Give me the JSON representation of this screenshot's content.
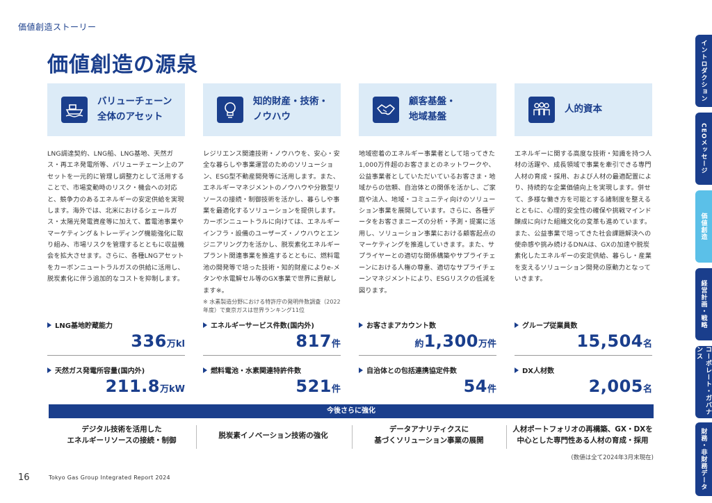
{
  "breadcrumb": "価値創造ストーリー",
  "title": "価値創造の源泉",
  "columns": [
    {
      "title_line1": "バリューチェーン",
      "title_line2": "全体のアセット",
      "icon": "ship-icon",
      "body": "LNG調達契約、LNG船、LNG基地、天然ガス・再エネ発電所等、バリューチェーン上のアセットを一元的に管理し調整力として活用することで、市場変動時のリスク・機会への対応と、競争力のあるエネルギーの安定供給を実現します。海外では、北米におけるシェールガス・太陽光発電資産等に加えて、蓄電池事業やマーケティング＆トレーディング機能強化に取り組み、市場リスクを管理するとともに収益機会を拡大させます。さらに、各種LNGアセットをカーボンニュートラルガスの供給に活用し、脱炭素化に伴う追加的なコストを抑制します。",
      "note": ""
    },
    {
      "title_line1": "知的財産・技術・",
      "title_line2": "ノウハウ",
      "icon": "lightbulb-icon",
      "body": "レジリエンス関連技術・ノウハウを、安心・安全な暮らしや事業運営のためのソリューション、ESG型不動産開発等に活用します。また、エネルギーマネジメントのノウハウや分散型リソースの接続・制御技術を活かし、暮らしや事業を最適化するソリューションを提供します。カーボンニュートラルに向けては、エネルギーインフラ・設備のユーザーズ・ノウハウとエンジニアリング力を活かし、脱炭素化エネルギープラント関連事業を推進するとともに、燃料電池の開発等で培った技術・知的財産によりe-メタンや水電解セル等のGX事業で世界に貢献します※。",
      "note": "※ 水素製造分野における特許庁の発明件数調査（2022年度）で東京ガスは世界ランキング11位"
    },
    {
      "title_line1": "顧客基盤・",
      "title_line2": "地域基盤",
      "icon": "handshake-icon",
      "body": "地域密着のエネルギー事業者として培ってきた1,000万件超のお客さまとのネットワークや、公益事業者としていただいているお客さま・地域からの信頼、自治体との関係を活かし、ご家庭や法人、地域・コミュニティ向けのソリューション事業を展開しています。さらに、各種データをお客さまニーズの分析・予測・提案に活用し、ソリューション事業における顧客起点のマーケティングを推進していきます。また、サプライヤーとの適切な関係構築やサプライチェーンにおける人権の尊重、適切なサプライチェーンマネジメントにより、ESGリスクの低減を図ります。",
      "note": ""
    },
    {
      "title_line1": "人的資本",
      "title_line2": "",
      "icon": "people-icon",
      "body": "エネルギーに関する高度な技術・知識を持つ人材の活躍や、成長領域で事業を牽引できる専門人材の育成・採用、および人材の最適配置により、持続的な企業価値向上を実現します。併せて、多様な働き方を可能とする諸制度を整えるとともに、心理的安全性の確保や挑戦マインド醸成に向けた組織文化の変革も進めています。また、公益事業で培ってきた社会課題解決への使命感や挑み続けるDNAは、GXの加速や脱炭素化したエネルギーの安定供給、暮らし・産業を支えるソリューション開発の原動力となっていきます。",
      "note": ""
    }
  ],
  "metrics": [
    {
      "label": "LNG基地貯蔵能力",
      "prefix": "",
      "value": "336",
      "unit": "万kl"
    },
    {
      "label": "エネルギーサービス件数(国内外)",
      "prefix": "",
      "value": "817",
      "unit": "件"
    },
    {
      "label": "お客さまアカウント数",
      "prefix": "約",
      "value": "1,300",
      "unit": "万件"
    },
    {
      "label": "グループ従業員数",
      "prefix": "",
      "value": "15,504",
      "unit": "名"
    },
    {
      "label": "天然ガス発電所容量(国内外)",
      "prefix": "",
      "value": "211.8",
      "unit": "万kW"
    },
    {
      "label": "燃料電池・水素関連特許件数",
      "prefix": "",
      "value": "521",
      "unit": "件"
    },
    {
      "label": "自治体との包括連携協定件数",
      "prefix": "",
      "value": "54",
      "unit": "件"
    },
    {
      "label": "DX人材数",
      "prefix": "",
      "value": "2,005",
      "unit": "名"
    }
  ],
  "banner": "今後さらに強化",
  "future": [
    {
      "line1": "デジタル技術を活用した",
      "line2": "エネルギーリソースの接続・制御"
    },
    {
      "line1": "脱炭素イノベーション技術の強化",
      "line2": ""
    },
    {
      "line1": "データアナリティクスに",
      "line2": "基づくソリューション事業の展開"
    },
    {
      "line1": "人材ポートフォリオの再構築、GX・DXを",
      "line2": "中心とした専門性ある人材の育成・採用"
    }
  ],
  "footnote": "(数値は全て2024年3月末現在)",
  "page_number": "16",
  "report_name": "Tokyo Gas Group Integrated Report 2024",
  "side_tabs": [
    "イントロダクション",
    "CEOメッセージ",
    "価値創造",
    "経営計画・戦略",
    "コーポレート・ガバナンス",
    "財務・非財務データ"
  ],
  "colors": {
    "primary": "#1a3e8c",
    "card_bg": "#dcebf7",
    "active_tab": "#5bc0e8"
  }
}
